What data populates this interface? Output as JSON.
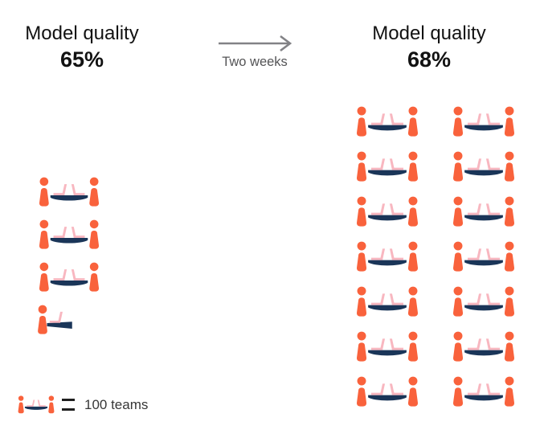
{
  "before": {
    "title": "Model quality",
    "value": "65%",
    "icons_full": 3,
    "icons_half": 1
  },
  "transition": {
    "label": "Two weeks"
  },
  "after": {
    "title": "Model quality",
    "value": "68%",
    "icons_full": 14,
    "icons_half": 0,
    "columns": 2
  },
  "legend": {
    "label": "100 teams",
    "unit_per_icon": 100
  },
  "chart_data": {
    "type": "pictogram",
    "title": "Model quality before and after two weeks",
    "unit": "teams",
    "unit_per_icon": 100,
    "icon": "two-people-at-table-with-laptops",
    "categories": [
      "Model quality 65% (before)",
      "Model quality 68% (after two weeks)"
    ],
    "icon_counts": [
      3.5,
      14
    ],
    "values": [
      350,
      1400
    ],
    "legend": "1 icon = 100 teams",
    "annotations": [
      "Two weeks (arrow between states)"
    ]
  },
  "colors": {
    "orange": "#F9623C",
    "pink": "#F8B7C0",
    "navy": "#1A3558",
    "arrow": "#828286",
    "transition_text": "#545456",
    "heading": "#121212",
    "legend_text": "#373737",
    "equals": "#1F1F1F"
  }
}
